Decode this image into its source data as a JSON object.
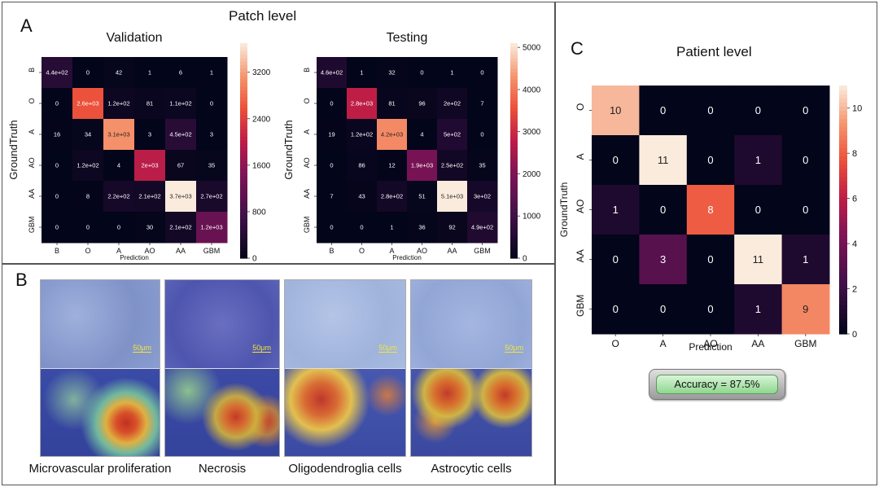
{
  "panels": {
    "a": {
      "letter": "A",
      "title": "Patch level"
    },
    "b": {
      "letter": "B"
    },
    "c": {
      "letter": "C",
      "title": "Patient level"
    }
  },
  "chart_data": [
    {
      "type": "heatmap",
      "title": "Validation",
      "xlabel": "Prediction",
      "ylabel": "GroundTruth",
      "x_categories": [
        "B",
        "O",
        "A",
        "AO",
        "AA",
        "GBM"
      ],
      "y_categories": [
        "B",
        "O",
        "A",
        "AO",
        "AA",
        "GBM"
      ],
      "values": [
        [
          440,
          0,
          42,
          1,
          6,
          1
        ],
        [
          0,
          2600,
          120,
          81,
          110,
          0
        ],
        [
          16,
          34,
          3100,
          3,
          450,
          3
        ],
        [
          0,
          120,
          4,
          2000,
          67,
          35
        ],
        [
          0,
          8,
          220,
          210,
          3700,
          270
        ],
        [
          0,
          0,
          0,
          30,
          210,
          1200
        ]
      ],
      "labels": [
        [
          "4.4e+02",
          "0",
          "42",
          "1",
          "6",
          "1"
        ],
        [
          "0",
          "2.6e+03",
          "1.2e+02",
          "81",
          "1.1e+02",
          "0"
        ],
        [
          "16",
          "34",
          "3.1e+03",
          "3",
          "4.5e+02",
          "3"
        ],
        [
          "0",
          "1.2e+02",
          "4",
          "2e+03",
          "67",
          "35"
        ],
        [
          "0",
          "8",
          "2.2e+02",
          "2.1e+02",
          "3.7e+03",
          "2.7e+02"
        ],
        [
          "0",
          "0",
          "0",
          "30",
          "2.1e+02",
          "1.2e+03"
        ]
      ],
      "vmin": 0,
      "vmax": 3700,
      "colorbar_ticks": [
        "0",
        "800",
        "1600",
        "2400",
        "3200"
      ],
      "colorbar_values": [
        0,
        800,
        1600,
        2400,
        3200
      ]
    },
    {
      "type": "heatmap",
      "title": "Testing",
      "xlabel": "Prediction",
      "ylabel": "GroundTruth",
      "x_categories": [
        "B",
        "O",
        "A",
        "AO",
        "AA",
        "GBM"
      ],
      "y_categories": [
        "B",
        "O",
        "A",
        "AO",
        "AA",
        "GBM"
      ],
      "values": [
        [
          460,
          1,
          32,
          0,
          1,
          0
        ],
        [
          0,
          2800,
          81,
          96,
          200,
          7
        ],
        [
          19,
          120,
          4200,
          4,
          500,
          0
        ],
        [
          0,
          86,
          12,
          1900,
          250,
          35
        ],
        [
          7,
          43,
          280,
          51,
          5100,
          300
        ],
        [
          0,
          0,
          1,
          36,
          92,
          490
        ]
      ],
      "labels": [
        [
          "4.6e+02",
          "1",
          "32",
          "0",
          "1",
          "0"
        ],
        [
          "0",
          "2.8e+03",
          "81",
          "96",
          "2e+02",
          "7"
        ],
        [
          "19",
          "1.2e+02",
          "4.2e+03",
          "4",
          "5e+02",
          "0"
        ],
        [
          "0",
          "86",
          "12",
          "1.9e+03",
          "2.5e+02",
          "35"
        ],
        [
          "7",
          "43",
          "2.8e+02",
          "51",
          "5.1e+03",
          "3e+02"
        ],
        [
          "0",
          "0",
          "1",
          "36",
          "92",
          "4.9e+02"
        ]
      ],
      "vmin": 0,
      "vmax": 5100,
      "colorbar_ticks": [
        "0",
        "1000",
        "2000",
        "3000",
        "4000",
        "5000"
      ],
      "colorbar_values": [
        0,
        1000,
        2000,
        3000,
        4000,
        5000
      ]
    },
    {
      "type": "heatmap",
      "title": "",
      "xlabel": "Prediction",
      "ylabel": "GroundTruth",
      "x_categories": [
        "O",
        "A",
        "AO",
        "AA",
        "GBM"
      ],
      "y_categories": [
        "O",
        "A",
        "AO",
        "AA",
        "GBM"
      ],
      "values": [
        [
          10,
          0,
          0,
          0,
          0
        ],
        [
          0,
          11,
          0,
          1,
          0
        ],
        [
          1,
          0,
          8,
          0,
          0
        ],
        [
          0,
          3,
          0,
          11,
          1
        ],
        [
          0,
          0,
          0,
          1,
          9
        ]
      ],
      "labels": [
        [
          "10",
          "0",
          "0",
          "0",
          "0"
        ],
        [
          "0",
          "11",
          "0",
          "1",
          "0"
        ],
        [
          "1",
          "0",
          "8",
          "0",
          "0"
        ],
        [
          "0",
          "3",
          "0",
          "11",
          "1"
        ],
        [
          "0",
          "0",
          "0",
          "1",
          "9"
        ]
      ],
      "vmin": 0,
      "vmax": 11,
      "colorbar_ticks": [
        "0",
        "2",
        "4",
        "6",
        "8",
        "10"
      ],
      "colorbar_values": [
        0,
        2,
        4,
        6,
        8,
        10
      ]
    }
  ],
  "images": [
    {
      "caption": "Microvascular proliferation",
      "scale_bar": "50μm"
    },
    {
      "caption": "Necrosis",
      "scale_bar": "50μm"
    },
    {
      "caption": "Oligodendroglia cells",
      "scale_bar": "50μm"
    },
    {
      "caption": "Astrocytic cells",
      "scale_bar": "50μm"
    }
  ],
  "accuracy_label": "Accuracy = 87.5%"
}
